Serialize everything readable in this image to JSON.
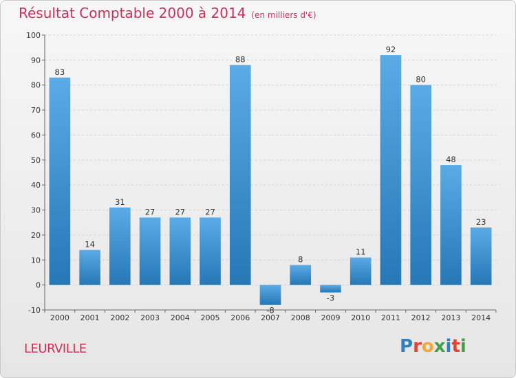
{
  "header": {
    "title": "Résultat Comptable 2000 à 2014",
    "subtitle": "(en milliers d'€)"
  },
  "footer": {
    "commune": "LEURVILLE",
    "logo_letters": [
      "P",
      "r",
      "o",
      "x",
      "i",
      "t",
      "i"
    ],
    "logo_colors": [
      "#2f7fc1",
      "#e0442c",
      "#f2a93b",
      "#43a047",
      "#2f7fc1",
      "#e0442c",
      "#43a047"
    ]
  },
  "colors": {
    "bar_light": "#5aabe6",
    "bar_dark": "#2577b6",
    "grid": "#d2d2d2",
    "axis": "#666666"
  },
  "chart_data": {
    "type": "bar",
    "title": "Résultat Comptable 2000 à 2014",
    "subtitle": "(en milliers d'€)",
    "xlabel": "",
    "ylabel": "",
    "categories": [
      "2000",
      "2001",
      "2002",
      "2003",
      "2004",
      "2005",
      "2006",
      "2007",
      "2008",
      "2009",
      "2010",
      "2011",
      "2012",
      "2013",
      "2014"
    ],
    "values": [
      83,
      14,
      31,
      27,
      27,
      27,
      88,
      -8,
      8,
      -3,
      11,
      92,
      80,
      48,
      23
    ],
    "ylim": [
      -10,
      100
    ],
    "yticks": [
      -10,
      0,
      10,
      20,
      30,
      40,
      50,
      60,
      70,
      80,
      90,
      100
    ],
    "grid": true,
    "legend": "none"
  }
}
